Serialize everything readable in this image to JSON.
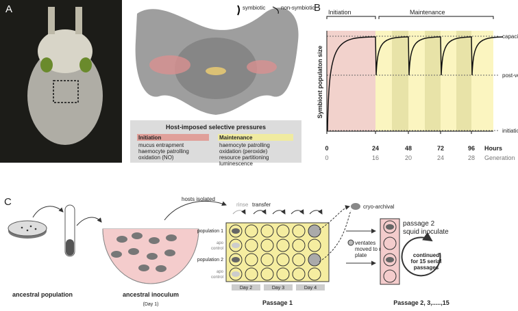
{
  "panels": {
    "a": {
      "label": "A",
      "legend": [
        "symbiotic",
        "non-symbiotic"
      ],
      "box": {
        "title": "Host-imposed selective pressures",
        "initiation": {
          "heading": "Initiation",
          "items": [
            "mucus entrapment",
            "haemocyte patrolling",
            "oxidation (NO)"
          ]
        },
        "maintenance": {
          "heading": "Maintenance",
          "items": [
            "haemocyte patrolling",
            "oxidation (peroxide)",
            "resource partitioning",
            "luminescence"
          ]
        }
      }
    },
    "b": {
      "label": "B",
      "phases": [
        "Initiation",
        "Maintenance"
      ],
      "y_axis_label": "Symbiont populaton size",
      "levels": [
        "capacity",
        "post-venting",
        "initiation"
      ],
      "hours": [
        0,
        24,
        48,
        72,
        96
      ],
      "hours_label": "Hours",
      "generations": [
        0,
        16,
        20,
        24,
        28
      ],
      "generation_label": "Generation"
    },
    "c": {
      "label": "C",
      "ancestral_population": "ancestral population",
      "ancestral_inoculum": "ancestral inoculum",
      "day1": "(Day 1)",
      "hosts_isolated": "hosts isolated",
      "rinse": "rinse",
      "transfer": "transfer",
      "cryo": "cryo-archival",
      "row_labels": [
        [
          "population 1"
        ],
        [
          "apo",
          "control"
        ],
        [
          "population 2"
        ],
        [
          "apo",
          "control"
        ]
      ],
      "days": [
        "Day 2",
        "Day 3",
        "Day 4"
      ],
      "passage1": "Passage 1",
      "ventates": [
        "ventates",
        "moved to new",
        "plate"
      ],
      "inoculate": [
        "passage 2",
        "squid inoculate"
      ],
      "continued": [
        "continued",
        "for 15 serial",
        "passages"
      ],
      "passages": "Passage 2, 3,.....,15"
    }
  }
}
